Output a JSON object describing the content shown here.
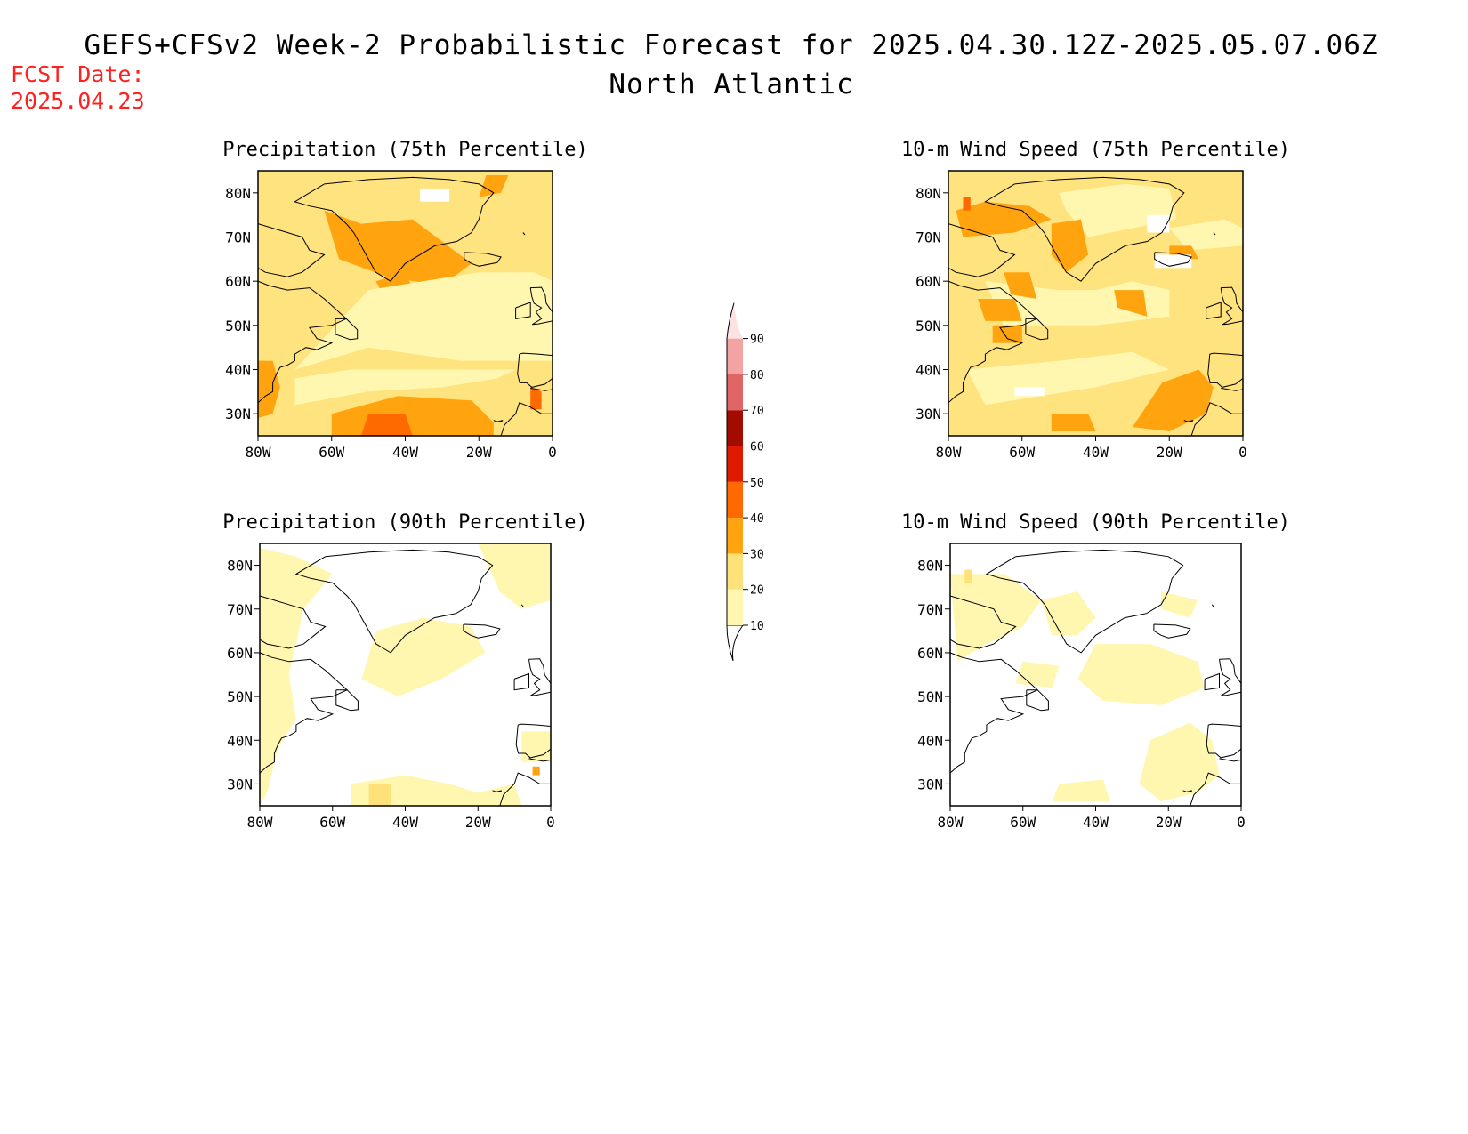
{
  "header": {
    "title": "GEFS+CFSv2 Week-2 Probabilistic Forecast for 2025.04.30.12Z-2025.05.07.06Z",
    "subtitle": "North Atlantic",
    "fcst_label": "FCST Date:",
    "fcst_date": "2025.04.23"
  },
  "axes": {
    "lat_labels": [
      "80N",
      "70N",
      "60N",
      "50N",
      "40N",
      "30N"
    ],
    "lon_labels": [
      "80W",
      "60W",
      "40W",
      "20W",
      "0"
    ],
    "lat_range": [
      25,
      85
    ],
    "lon_range": [
      -80,
      0
    ]
  },
  "colorbar": {
    "labels": [
      "10",
      "20",
      "30",
      "40",
      "50",
      "60",
      "70",
      "80",
      "90"
    ],
    "colors": [
      "#fff7b0",
      "#ffe17a",
      "#ffa40f",
      "#ff6a00",
      "#e01a00",
      "#a30a00",
      "#e06666",
      "#f4a3a3",
      "#fde2e2"
    ]
  },
  "panels": [
    {
      "id": "precip-75",
      "title": "Precipitation (75th Percentile)",
      "base_color": "#ffe37f",
      "regions": [
        {
          "level": 30,
          "points": [
            [
              -62,
              76
            ],
            [
              -52,
              73
            ],
            [
              -38,
              74
            ],
            [
              -30,
              69
            ],
            [
              -22,
              64
            ],
            [
              -30,
              59
            ],
            [
              -45,
              61
            ],
            [
              -58,
              65
            ]
          ]
        },
        {
          "level": 30,
          "points": [
            [
              -48,
              60
            ],
            [
              -40,
              62
            ],
            [
              -36,
              55
            ],
            [
              -44,
              54
            ]
          ]
        },
        {
          "level": 30,
          "points": [
            [
              -18,
              84
            ],
            [
              -12,
              84
            ],
            [
              -14,
              80
            ],
            [
              -20,
              79
            ]
          ]
        },
        {
          "level": 30,
          "points": [
            [
              -80,
              42
            ],
            [
              -76,
              42
            ],
            [
              -74,
              36
            ],
            [
              -76,
              30
            ],
            [
              -80,
              29
            ]
          ]
        },
        {
          "level": 30,
          "points": [
            [
              -60,
              30
            ],
            [
              -42,
              34
            ],
            [
              -22,
              33
            ],
            [
              -16,
              28
            ],
            [
              -16,
              25
            ],
            [
              -60,
              25
            ]
          ]
        },
        {
          "level": 40,
          "points": [
            [
              -50,
              30
            ],
            [
              -40,
              30
            ],
            [
              -38,
              25
            ],
            [
              -52,
              25
            ]
          ]
        },
        {
          "level": 40,
          "points": [
            [
              -6,
              36
            ],
            [
              -3,
              35
            ],
            [
              -3,
              31
            ],
            [
              -6,
              31
            ]
          ]
        },
        {
          "level": 10,
          "points": [
            [
              -50,
              58
            ],
            [
              -20,
              62
            ],
            [
              -5,
              62
            ],
            [
              0,
              60
            ],
            [
              0,
              42
            ],
            [
              -25,
              42
            ],
            [
              -50,
              45
            ],
            [
              -70,
              40
            ]
          ]
        },
        {
          "level": 10,
          "points": [
            [
              -70,
              32
            ],
            [
              -50,
              35
            ],
            [
              -30,
              36
            ],
            [
              -15,
              38
            ],
            [
              -10,
              40
            ],
            [
              -30,
              40
            ],
            [
              -55,
              40
            ],
            [
              -70,
              38
            ]
          ]
        },
        {
          "level": 0,
          "points": [
            [
              -36,
              81
            ],
            [
              -28,
              81
            ],
            [
              -28,
              78
            ],
            [
              -36,
              78
            ]
          ]
        }
      ]
    },
    {
      "id": "wind-75",
      "title": "10-m Wind Speed (75th Percentile)",
      "base_color": "#ffe37f",
      "regions": [
        {
          "level": 10,
          "points": [
            [
              -50,
              80
            ],
            [
              -32,
              82
            ],
            [
              -20,
              81
            ],
            [
              -18,
              74
            ],
            [
              -30,
              72
            ],
            [
              -42,
              70
            ],
            [
              -48,
              76
            ]
          ]
        },
        {
          "level": 10,
          "points": [
            [
              -70,
              60
            ],
            [
              -50,
              58
            ],
            [
              -40,
              58
            ],
            [
              -30,
              60
            ],
            [
              -20,
              58
            ],
            [
              -20,
              52
            ],
            [
              -40,
              50
            ],
            [
              -65,
              50
            ]
          ]
        },
        {
          "level": 10,
          "points": [
            [
              -75,
              40
            ],
            [
              -50,
              42
            ],
            [
              -30,
              44
            ],
            [
              -20,
              40
            ],
            [
              -40,
              36
            ],
            [
              -70,
              32
            ]
          ]
        },
        {
          "level": 10,
          "points": [
            [
              -20,
              72
            ],
            [
              -5,
              74
            ],
            [
              0,
              72
            ],
            [
              0,
              68
            ],
            [
              -15,
              67
            ]
          ]
        },
        {
          "level": 30,
          "points": [
            [
              -78,
              76
            ],
            [
              -70,
              78
            ],
            [
              -58,
              77
            ],
            [
              -52,
              74
            ],
            [
              -62,
              71
            ],
            [
              -76,
              70
            ]
          ]
        },
        {
          "level": 30,
          "points": [
            [
              -52,
              73
            ],
            [
              -44,
              74
            ],
            [
              -42,
              66
            ],
            [
              -48,
              62
            ],
            [
              -52,
              66
            ]
          ]
        },
        {
          "level": 30,
          "points": [
            [
              -65,
              62
            ],
            [
              -58,
              62
            ],
            [
              -56,
              56
            ],
            [
              -63,
              57
            ]
          ]
        },
        {
          "level": 30,
          "points": [
            [
              -35,
              58
            ],
            [
              -27,
              58
            ],
            [
              -26,
              52
            ],
            [
              -34,
              54
            ]
          ]
        },
        {
          "level": 30,
          "points": [
            [
              -72,
              56
            ],
            [
              -62,
              56
            ],
            [
              -60,
              51
            ],
            [
              -70,
              51
            ]
          ]
        },
        {
          "level": 30,
          "points": [
            [
              -68,
              50
            ],
            [
              -60,
              50
            ],
            [
              -60,
              46
            ],
            [
              -68,
              46
            ]
          ]
        },
        {
          "level": 30,
          "points": [
            [
              -22,
              37
            ],
            [
              -12,
              40
            ],
            [
              -8,
              36
            ],
            [
              -10,
              30
            ],
            [
              -20,
              26
            ],
            [
              -30,
              27
            ]
          ]
        },
        {
          "level": 30,
          "points": [
            [
              -52,
              30
            ],
            [
              -42,
              30
            ],
            [
              -40,
              26
            ],
            [
              -52,
              26
            ]
          ]
        },
        {
          "level": 30,
          "points": [
            [
              -20,
              68
            ],
            [
              -14,
              68
            ],
            [
              -12,
              65
            ],
            [
              -20,
              65
            ]
          ]
        },
        {
          "level": 40,
          "points": [
            [
              -76,
              79
            ],
            [
              -74,
              79
            ],
            [
              -74,
              76
            ],
            [
              -76,
              76
            ]
          ]
        },
        {
          "level": 0,
          "points": [
            [
              -24,
              66
            ],
            [
              -14,
              66
            ],
            [
              -14,
              63
            ],
            [
              -24,
              63
            ]
          ]
        },
        {
          "level": 0,
          "points": [
            [
              -62,
              36
            ],
            [
              -54,
              36
            ],
            [
              -54,
              34
            ],
            [
              -62,
              34
            ]
          ]
        },
        {
          "level": 0,
          "points": [
            [
              -26,
              75
            ],
            [
              -20,
              75
            ],
            [
              -20,
              71
            ],
            [
              -26,
              71
            ]
          ]
        }
      ]
    },
    {
      "id": "precip-90",
      "title": "Precipitation (90th Percentile)",
      "base_color": "#ffffff",
      "regions": [
        {
          "level": 10,
          "points": [
            [
              -80,
              84
            ],
            [
              -70,
              82
            ],
            [
              -60,
              78
            ],
            [
              -68,
              70
            ],
            [
              -70,
              62
            ],
            [
              -72,
              55
            ],
            [
              -70,
              45
            ],
            [
              -75,
              38
            ],
            [
              -78,
              28
            ],
            [
              -80,
              25
            ]
          ]
        },
        {
          "level": 10,
          "points": [
            [
              -48,
              65
            ],
            [
              -35,
              68
            ],
            [
              -22,
              66
            ],
            [
              -18,
              60
            ],
            [
              -30,
              54
            ],
            [
              -42,
              50
            ],
            [
              -52,
              54
            ]
          ]
        },
        {
          "level": 10,
          "points": [
            [
              -20,
              85
            ],
            [
              0,
              85
            ],
            [
              0,
              72
            ],
            [
              -8,
              70
            ],
            [
              -14,
              74
            ]
          ]
        },
        {
          "level": 10,
          "points": [
            [
              -55,
              30
            ],
            [
              -40,
              32
            ],
            [
              -28,
              30
            ],
            [
              -20,
              28
            ],
            [
              -10,
              30
            ],
            [
              -8,
              25
            ],
            [
              -55,
              25
            ]
          ]
        },
        {
          "level": 10,
          "points": [
            [
              -8,
              42
            ],
            [
              0,
              42
            ],
            [
              0,
              35
            ],
            [
              -8,
              35
            ]
          ]
        },
        {
          "level": 20,
          "points": [
            [
              -50,
              30
            ],
            [
              -44,
              30
            ],
            [
              -44,
              25
            ],
            [
              -50,
              25
            ]
          ]
        },
        {
          "level": 30,
          "points": [
            [
              -5,
              34
            ],
            [
              -3,
              34
            ],
            [
              -3,
              32
            ],
            [
              -5,
              32
            ]
          ]
        }
      ]
    },
    {
      "id": "wind-90",
      "title": "10-m Wind Speed (90th Percentile)",
      "base_color": "#ffffff",
      "regions": [
        {
          "level": 10,
          "points": [
            [
              -80,
              78
            ],
            [
              -65,
              78
            ],
            [
              -55,
              72
            ],
            [
              -60,
              66
            ],
            [
              -70,
              62
            ],
            [
              -78,
              58
            ]
          ]
        },
        {
          "level": 10,
          "points": [
            [
              -55,
              72
            ],
            [
              -45,
              74
            ],
            [
              -40,
              68
            ],
            [
              -45,
              64
            ],
            [
              -52,
              64
            ]
          ]
        },
        {
          "level": 10,
          "points": [
            [
              -40,
              62
            ],
            [
              -25,
              62
            ],
            [
              -12,
              58
            ],
            [
              -10,
              52
            ],
            [
              -22,
              48
            ],
            [
              -38,
              49
            ],
            [
              -45,
              54
            ]
          ]
        },
        {
          "level": 10,
          "points": [
            [
              -60,
              58
            ],
            [
              -50,
              57
            ],
            [
              -52,
              52
            ],
            [
              -62,
              53
            ]
          ]
        },
        {
          "level": 10,
          "points": [
            [
              -25,
              40
            ],
            [
              -14,
              44
            ],
            [
              -8,
              40
            ],
            [
              -6,
              32
            ],
            [
              -12,
              28
            ],
            [
              -22,
              26
            ],
            [
              -28,
              30
            ]
          ]
        },
        {
          "level": 10,
          "points": [
            [
              -50,
              30
            ],
            [
              -38,
              31
            ],
            [
              -36,
              26
            ],
            [
              -52,
              26
            ]
          ]
        },
        {
          "level": 10,
          "points": [
            [
              -22,
              74
            ],
            [
              -12,
              72
            ],
            [
              -14,
              68
            ],
            [
              -22,
              70
            ]
          ]
        },
        {
          "level": 20,
          "points": [
            [
              -76,
              79
            ],
            [
              -74,
              79
            ],
            [
              -74,
              76
            ],
            [
              -76,
              76
            ]
          ]
        }
      ]
    }
  ]
}
